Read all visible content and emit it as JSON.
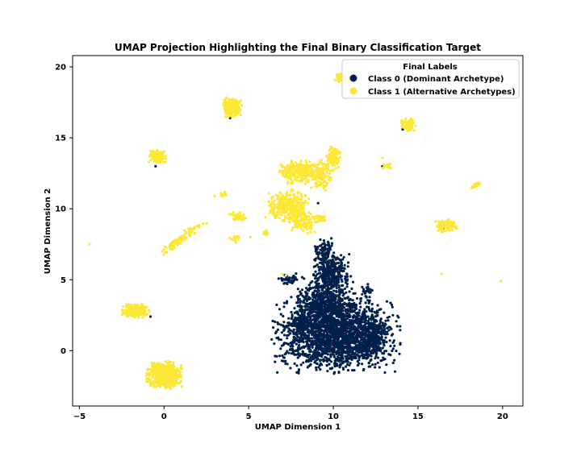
{
  "chart_data": {
    "type": "scatter",
    "title": "UMAP Projection Highlighting the Final Binary Classification Target",
    "xlabel": "UMAP Dimension 1",
    "ylabel": "UMAP Dimension 2",
    "xlim": [
      -5.4,
      21.2
    ],
    "ylim": [
      -3.9,
      20.8
    ],
    "xticks": [
      -5,
      0,
      5,
      10,
      15,
      20
    ],
    "yticks": [
      0,
      5,
      10,
      15,
      20
    ],
    "grid": false,
    "legend": {
      "title": "Final Labels",
      "placement": "upper-right",
      "entries": [
        "Class 0 (Dominant Archetype)",
        "Class 1 (Alternative Archetypes)"
      ]
    },
    "series": [
      {
        "name": "Class 0 (Dominant Archetype)",
        "color": "#00204c",
        "clusters": [
          {
            "cx": 10.2,
            "cy": 1.2,
            "sx": 1.6,
            "sy": 1.2,
            "n": 2200
          },
          {
            "cx": 9.5,
            "cy": 3.6,
            "sx": 0.7,
            "sy": 0.8,
            "n": 500
          },
          {
            "cx": 9.9,
            "cy": 5.6,
            "sx": 0.45,
            "sy": 0.6,
            "n": 260
          },
          {
            "cx": 9.4,
            "cy": 7.0,
            "sx": 0.25,
            "sy": 0.4,
            "n": 80
          },
          {
            "cx": 7.3,
            "cy": 5.0,
            "sx": 0.25,
            "sy": 0.2,
            "n": 40
          },
          {
            "cx": 12.0,
            "cy": 4.2,
            "sx": 0.15,
            "sy": 0.2,
            "n": 25
          },
          {
            "cx": 12.3,
            "cy": 0.8,
            "sx": 0.3,
            "sy": 0.6,
            "n": 200
          },
          {
            "cx": 8.1,
            "cy": 1.9,
            "sx": 0.3,
            "sy": 0.25,
            "n": 120
          }
        ],
        "outliers": [
          [
            0.8,
            -1.4
          ],
          [
            -0.5,
            13.0
          ],
          [
            3.9,
            16.4
          ],
          [
            4.4,
            16.9
          ],
          [
            14.1,
            15.6
          ],
          [
            16.5,
            8.6
          ],
          [
            9.1,
            10.4
          ],
          [
            12.9,
            13.0
          ],
          [
            10.4,
            19.3
          ],
          [
            -0.8,
            2.4
          ]
        ]
      },
      {
        "name": "Class 1 (Alternative Archetypes)",
        "color": "#fde737",
        "clusters": [
          {
            "cx": 0.0,
            "cy": -1.7,
            "sx": 0.45,
            "sy": 0.4,
            "n": 600
          },
          {
            "cx": -1.7,
            "cy": 2.8,
            "sx": 0.35,
            "sy": 0.2,
            "n": 260
          },
          {
            "cx": 4.0,
            "cy": 17.2,
            "sx": 0.25,
            "sy": 0.3,
            "n": 180
          },
          {
            "cx": -0.4,
            "cy": 13.7,
            "sx": 0.22,
            "sy": 0.22,
            "n": 140
          },
          {
            "cx": 8.0,
            "cy": 12.6,
            "sx": 0.55,
            "sy": 0.35,
            "n": 260
          },
          {
            "cx": 7.3,
            "cy": 10.2,
            "sx": 0.55,
            "sy": 0.5,
            "n": 300
          },
          {
            "cx": 8.2,
            "cy": 9.2,
            "sx": 0.35,
            "sy": 0.4,
            "n": 120
          },
          {
            "cx": 9.3,
            "cy": 12.4,
            "sx": 0.3,
            "sy": 0.5,
            "n": 120
          },
          {
            "cx": 10.0,
            "cy": 13.6,
            "sx": 0.2,
            "sy": 0.4,
            "n": 90
          },
          {
            "cx": 16.6,
            "cy": 8.8,
            "sx": 0.3,
            "sy": 0.2,
            "n": 100
          },
          {
            "cx": 14.4,
            "cy": 15.9,
            "sx": 0.2,
            "sy": 0.2,
            "n": 80
          },
          {
            "cx": 10.6,
            "cy": 19.2,
            "sx": 0.25,
            "sy": 0.15,
            "n": 60
          },
          {
            "cx": 13.1,
            "cy": 13.0,
            "sx": 0.15,
            "sy": 0.08,
            "n": 20
          },
          {
            "cx": 4.4,
            "cy": 9.4,
            "sx": 0.25,
            "sy": 0.15,
            "n": 40
          },
          {
            "cx": 3.5,
            "cy": 11.0,
            "sx": 0.1,
            "sy": 0.08,
            "n": 15
          },
          {
            "cx": 9.2,
            "cy": 9.3,
            "sx": 0.2,
            "sy": 0.12,
            "n": 30
          },
          {
            "cx": 6.0,
            "cy": 8.3,
            "sx": 0.08,
            "sy": 0.15,
            "n": 15
          },
          {
            "cx": 4.2,
            "cy": 7.8,
            "sx": 0.15,
            "sy": 0.12,
            "n": 15
          }
        ],
        "lines": [
          {
            "from": [
              0.0,
              7.0
            ],
            "to": [
              1.8,
              8.6
            ],
            "n": 90,
            "spread": 0.12
          },
          {
            "from": [
              1.8,
              8.6
            ],
            "to": [
              2.4,
              8.9
            ],
            "n": 10,
            "spread": 0.15
          },
          {
            "from": [
              18.2,
              11.5
            ],
            "to": [
              18.6,
              11.8
            ],
            "n": 25,
            "spread": 0.06
          }
        ],
        "outliers": [
          [
            -4.4,
            7.5
          ],
          [
            19.9,
            4.9
          ],
          [
            16.4,
            5.4
          ],
          [
            7.2,
            5.3
          ],
          [
            12.9,
            13.6
          ],
          [
            1.6,
            8.4
          ],
          [
            5.1,
            8.0
          ],
          [
            3.0,
            10.9
          ],
          [
            7.0,
            5.4
          ]
        ]
      }
    ]
  }
}
